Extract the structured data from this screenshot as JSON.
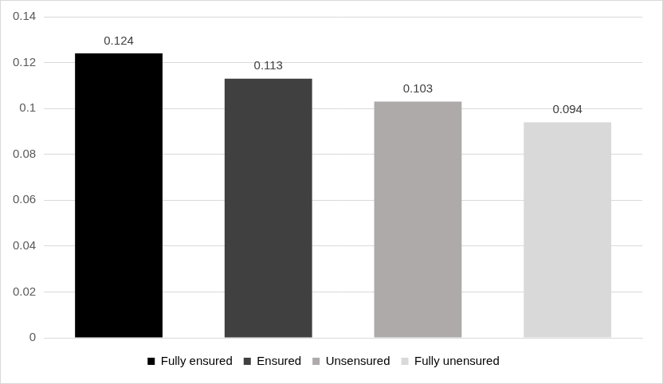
{
  "chart_data": {
    "type": "bar",
    "categories": [
      "Fully ensured",
      "Ensured",
      "Unsensured",
      "Fully unensured"
    ],
    "values": [
      0.124,
      0.113,
      0.103,
      0.094
    ],
    "colors": [
      "#000000",
      "#404040",
      "#aeaaaa",
      "#d9d9d9"
    ],
    "ylim": [
      0,
      0.14
    ],
    "yticks": [
      0,
      0.02,
      0.04,
      0.06,
      0.08,
      0.1,
      0.12,
      0.14
    ],
    "grid": true,
    "legend": "bottom",
    "data_labels": true,
    "tick_labels": "y"
  }
}
